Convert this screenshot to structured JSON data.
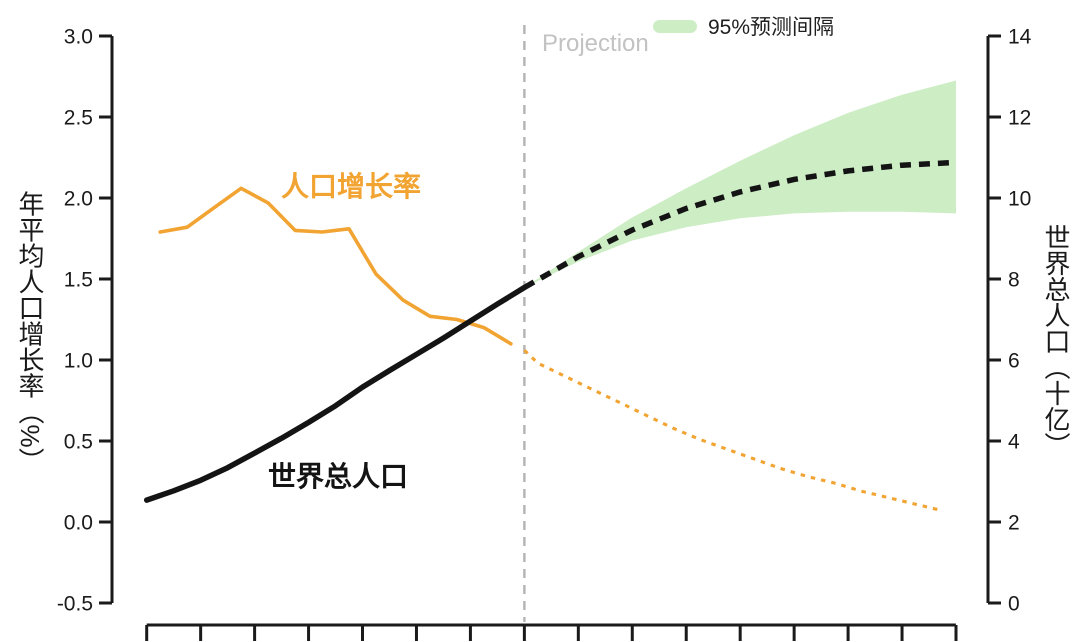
{
  "chart_data": {
    "type": "line",
    "title": "",
    "x_axis": {
      "tick_count": 16,
      "labels_visible": false,
      "estimated_range_years": [
        1950,
        2100
      ],
      "tick_step_years": 10
    },
    "left_axis": {
      "label": "年平均人口增长率（%）",
      "range": [
        -0.5,
        3.0
      ],
      "ticks": [
        3.0,
        2.5,
        2.0,
        1.5,
        1.0,
        0.5,
        0.0,
        -0.5
      ],
      "tick_labels": [
        "3.0",
        "2.5",
        "2.0",
        "1.5",
        "1.0",
        "0.5",
        "0.0",
        "-0.5"
      ]
    },
    "right_axis": {
      "label": "世界总人口（十亿）",
      "range": [
        0,
        14
      ],
      "ticks": [
        14,
        12,
        10,
        8,
        6,
        4,
        2,
        0
      ],
      "tick_labels": [
        "14",
        "12",
        "10",
        "8",
        "6",
        "4",
        "2",
        "0"
      ]
    },
    "annotations": {
      "projection_label": "Projection",
      "projection_divider_year": 2020,
      "growth_rate_label": "人口增长率",
      "population_label": "世界总人口"
    },
    "legend": {
      "label": "95%预测间隔",
      "position": "top-right"
    },
    "colors": {
      "growth_rate": "#F2A433",
      "population": "#141414",
      "interval_band": "#CDEDC5",
      "divider": "#B3B3B3",
      "projection_text": "#C2C2C2",
      "axis": "#1A1A1A"
    },
    "series": [
      {
        "name": "growth_rate_observed",
        "axis": "left",
        "style": "solid",
        "points": [
          [
            1952.5,
            1.79
          ],
          [
            1957.5,
            1.82
          ],
          [
            1962.5,
            1.94
          ],
          [
            1967.5,
            2.06
          ],
          [
            1972.5,
            1.97
          ],
          [
            1977.5,
            1.8
          ],
          [
            1982.5,
            1.79
          ],
          [
            1987.5,
            1.81
          ],
          [
            1992.5,
            1.53
          ],
          [
            1997.5,
            1.37
          ],
          [
            2002.5,
            1.27
          ],
          [
            2007.5,
            1.25
          ],
          [
            2012.5,
            1.2
          ],
          [
            2017.5,
            1.1
          ]
        ]
      },
      {
        "name": "growth_rate_projected",
        "axis": "left",
        "style": "dotted",
        "points": [
          [
            2020,
            1.06
          ],
          [
            2022.5,
            0.98
          ],
          [
            2027.5,
            0.9
          ],
          [
            2032.5,
            0.82
          ],
          [
            2037.5,
            0.74
          ],
          [
            2042.5,
            0.66
          ],
          [
            2047.5,
            0.58
          ],
          [
            2052.5,
            0.51
          ],
          [
            2057.5,
            0.45
          ],
          [
            2062.5,
            0.39
          ],
          [
            2067.5,
            0.33
          ],
          [
            2072.5,
            0.28
          ],
          [
            2077.5,
            0.24
          ],
          [
            2082.5,
            0.19
          ],
          [
            2087.5,
            0.15
          ],
          [
            2092.5,
            0.11
          ],
          [
            2097.5,
            0.07
          ]
        ]
      },
      {
        "name": "population_observed",
        "axis": "right",
        "style": "solid",
        "points": [
          [
            1950,
            2.54
          ],
          [
            1955,
            2.77
          ],
          [
            1960,
            3.03
          ],
          [
            1965,
            3.34
          ],
          [
            1970,
            3.7
          ],
          [
            1975,
            4.07
          ],
          [
            1980,
            4.46
          ],
          [
            1985,
            4.87
          ],
          [
            1990,
            5.33
          ],
          [
            1995,
            5.74
          ],
          [
            2000,
            6.14
          ],
          [
            2005,
            6.54
          ],
          [
            2010,
            6.96
          ],
          [
            2015,
            7.38
          ],
          [
            2020,
            7.79
          ]
        ]
      },
      {
        "name": "population_projected",
        "axis": "right",
        "style": "dashed",
        "points": [
          [
            2020,
            7.79
          ],
          [
            2030,
            8.55
          ],
          [
            2040,
            9.21
          ],
          [
            2050,
            9.74
          ],
          [
            2060,
            10.15
          ],
          [
            2070,
            10.46
          ],
          [
            2080,
            10.67
          ],
          [
            2090,
            10.81
          ],
          [
            2100,
            10.88
          ]
        ]
      },
      {
        "name": "population_95pct_prediction_interval",
        "axis": "right",
        "style": "band",
        "upper": [
          [
            2020,
            7.79
          ],
          [
            2030,
            8.67
          ],
          [
            2040,
            9.52
          ],
          [
            2050,
            10.24
          ],
          [
            2060,
            10.92
          ],
          [
            2070,
            11.55
          ],
          [
            2080,
            12.1
          ],
          [
            2090,
            12.55
          ],
          [
            2100,
            12.9
          ]
        ],
        "lower": [
          [
            2020,
            7.79
          ],
          [
            2030,
            8.43
          ],
          [
            2040,
            8.95
          ],
          [
            2050,
            9.28
          ],
          [
            2060,
            9.5
          ],
          [
            2070,
            9.62
          ],
          [
            2080,
            9.66
          ],
          [
            2090,
            9.66
          ],
          [
            2100,
            9.62
          ]
        ]
      }
    ]
  }
}
